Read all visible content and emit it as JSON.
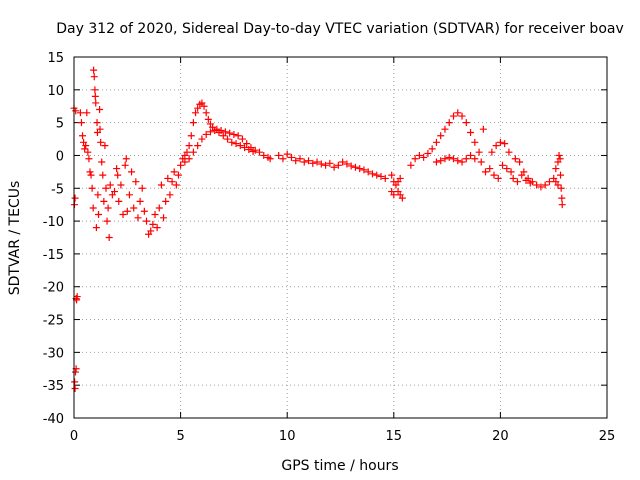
{
  "chart_data": {
    "type": "scatter",
    "title": "Day 312 of 2020, Sidereal Day-to-day VTEC variation (SDTVAR) for receiver boav",
    "xlabel": "GPS time / hours",
    "ylabel": "SDTVAR / TECUs",
    "xlim": [
      0,
      25
    ],
    "ylim": [
      -40,
      15
    ],
    "xticks": [
      "0",
      "5",
      "10",
      "15",
      "20",
      "25"
    ],
    "xtick_values": [
      0,
      5,
      10,
      15,
      20,
      25
    ],
    "yticks": [
      "15",
      "10",
      "5",
      "0",
      "-5",
      "-10",
      "-15",
      "-20",
      "-25",
      "-30",
      "-35",
      "-40"
    ],
    "ytick_values": [
      15,
      10,
      5,
      0,
      -5,
      -10,
      -15,
      -20,
      -25,
      -30,
      -35,
      -40
    ],
    "grid": true,
    "marker": "+",
    "color": "#ff0000",
    "series": [
      {
        "name": "SDTVAR",
        "points": [
          [
            0.0,
            7.2
          ],
          [
            0.02,
            -7.5
          ],
          [
            0.05,
            -6.5
          ],
          [
            0.08,
            6.8
          ],
          [
            0.1,
            -21.8
          ],
          [
            0.12,
            -22.0
          ],
          [
            0.15,
            -21.5
          ],
          [
            0.03,
            -34.5
          ],
          [
            0.05,
            -35.5
          ],
          [
            0.07,
            -33.0
          ],
          [
            0.1,
            -32.5
          ],
          [
            0.3,
            6.5
          ],
          [
            0.35,
            5.0
          ],
          [
            0.4,
            3.0
          ],
          [
            0.45,
            2.0
          ],
          [
            0.5,
            1.0
          ],
          [
            0.55,
            1.5
          ],
          [
            0.6,
            6.5
          ],
          [
            0.65,
            0.5
          ],
          [
            0.7,
            -0.5
          ],
          [
            0.75,
            -2.5
          ],
          [
            0.8,
            -3.0
          ],
          [
            0.85,
            -5.0
          ],
          [
            0.9,
            -8.0
          ],
          [
            0.92,
            13.0
          ],
          [
            0.95,
            12.0
          ],
          [
            0.98,
            10.0
          ],
          [
            1.0,
            9.0
          ],
          [
            1.02,
            8.0
          ],
          [
            1.05,
            -11.0
          ],
          [
            1.08,
            5.0
          ],
          [
            1.1,
            3.5
          ],
          [
            1.12,
            -6.0
          ],
          [
            1.15,
            -9.0
          ],
          [
            1.2,
            7.0
          ],
          [
            1.22,
            4.0
          ],
          [
            1.25,
            2.0
          ],
          [
            1.3,
            -1.0
          ],
          [
            1.35,
            -3.0
          ],
          [
            1.4,
            -7.0
          ],
          [
            1.45,
            1.5
          ],
          [
            1.5,
            -5.0
          ],
          [
            1.55,
            -10.0
          ],
          [
            1.6,
            -8.0
          ],
          [
            1.65,
            -12.5
          ],
          [
            1.7,
            -4.5
          ],
          [
            1.8,
            -6.0
          ],
          [
            1.9,
            -5.5
          ],
          [
            2.0,
            -2.0
          ],
          [
            2.05,
            -3.0
          ],
          [
            2.1,
            -7.0
          ],
          [
            2.2,
            -4.5
          ],
          [
            2.3,
            -9.0
          ],
          [
            2.4,
            -1.5
          ],
          [
            2.45,
            -0.5
          ],
          [
            2.5,
            -8.5
          ],
          [
            2.6,
            -6.0
          ],
          [
            2.7,
            -2.5
          ],
          [
            2.8,
            -8.0
          ],
          [
            2.9,
            -4.0
          ],
          [
            3.0,
            -9.5
          ],
          [
            3.1,
            -7.0
          ],
          [
            3.2,
            -5.0
          ],
          [
            3.3,
            -8.5
          ],
          [
            3.4,
            -10.0
          ],
          [
            3.5,
            -12.0
          ],
          [
            3.6,
            -11.5
          ],
          [
            3.7,
            -10.5
          ],
          [
            3.8,
            -9.0
          ],
          [
            3.9,
            -11.0
          ],
          [
            4.0,
            -8.0
          ],
          [
            4.1,
            -4.5
          ],
          [
            4.2,
            -9.5
          ],
          [
            4.3,
            -7.0
          ],
          [
            4.4,
            -3.5
          ],
          [
            4.5,
            -6.0
          ],
          [
            4.6,
            -4.0
          ],
          [
            4.7,
            -2.5
          ],
          [
            4.8,
            -4.5
          ],
          [
            4.9,
            -3.0
          ],
          [
            5.0,
            -1.5
          ],
          [
            5.1,
            -0.5
          ],
          [
            5.2,
            0.0
          ],
          [
            5.3,
            0.5
          ],
          [
            5.4,
            1.5
          ],
          [
            5.5,
            3.0
          ],
          [
            5.6,
            5.0
          ],
          [
            5.7,
            6.5
          ],
          [
            5.8,
            7.2
          ],
          [
            5.9,
            7.8
          ],
          [
            6.0,
            8.0
          ],
          [
            6.1,
            7.5
          ],
          [
            6.2,
            6.5
          ],
          [
            6.3,
            5.5
          ],
          [
            6.4,
            4.8
          ],
          [
            6.5,
            4.3
          ],
          [
            6.7,
            4.0
          ],
          [
            6.9,
            3.8
          ],
          [
            7.1,
            3.6
          ],
          [
            7.3,
            3.4
          ],
          [
            7.5,
            3.2
          ],
          [
            7.7,
            3.0
          ],
          [
            7.9,
            2.5
          ],
          [
            8.1,
            1.8
          ],
          [
            8.3,
            1.2
          ],
          [
            8.5,
            0.8
          ],
          [
            8.7,
            0.5
          ],
          [
            8.9,
            0.0
          ],
          [
            9.1,
            -0.3
          ],
          [
            9.2,
            -0.5
          ],
          [
            5.2,
            -1.0
          ],
          [
            5.4,
            -0.5
          ],
          [
            5.6,
            0.5
          ],
          [
            5.8,
            1.5
          ],
          [
            6.0,
            2.5
          ],
          [
            6.2,
            3.2
          ],
          [
            6.4,
            3.6
          ],
          [
            6.6,
            3.8
          ],
          [
            6.8,
            3.5
          ],
          [
            7.0,
            3.0
          ],
          [
            7.2,
            2.5
          ],
          [
            7.4,
            2.0
          ],
          [
            7.6,
            1.8
          ],
          [
            7.8,
            1.5
          ],
          [
            8.0,
            1.2
          ],
          [
            8.2,
            0.9
          ],
          [
            8.4,
            0.6
          ],
          [
            9.6,
            0.0
          ],
          [
            9.8,
            -0.5
          ],
          [
            10.0,
            0.2
          ],
          [
            10.2,
            -0.3
          ],
          [
            10.4,
            -0.8
          ],
          [
            10.6,
            -0.5
          ],
          [
            10.8,
            -1.0
          ],
          [
            11.0,
            -0.8
          ],
          [
            11.2,
            -1.2
          ],
          [
            11.4,
            -1.0
          ],
          [
            11.6,
            -1.3
          ],
          [
            11.8,
            -1.5
          ],
          [
            12.0,
            -1.2
          ],
          [
            12.2,
            -1.8
          ],
          [
            12.4,
            -1.5
          ],
          [
            12.6,
            -1.0
          ],
          [
            12.8,
            -1.3
          ],
          [
            13.0,
            -1.6
          ],
          [
            13.2,
            -1.8
          ],
          [
            13.4,
            -2.0
          ],
          [
            13.6,
            -2.2
          ],
          [
            13.8,
            -2.5
          ],
          [
            14.0,
            -2.8
          ],
          [
            14.2,
            -3.0
          ],
          [
            14.4,
            -3.2
          ],
          [
            14.6,
            -3.5
          ],
          [
            14.9,
            -3.0
          ],
          [
            15.0,
            -4.0
          ],
          [
            15.1,
            -4.5
          ],
          [
            15.2,
            -5.5
          ],
          [
            15.3,
            -6.0
          ],
          [
            15.4,
            -6.5
          ],
          [
            15.2,
            -4.0
          ],
          [
            15.0,
            -6.0
          ],
          [
            14.9,
            -5.5
          ],
          [
            15.3,
            -3.5
          ],
          [
            15.8,
            -1.5
          ],
          [
            16.0,
            -0.5
          ],
          [
            16.2,
            0.0
          ],
          [
            16.4,
            -0.3
          ],
          [
            16.6,
            0.3
          ],
          [
            16.8,
            1.0
          ],
          [
            17.0,
            2.0
          ],
          [
            17.2,
            3.0
          ],
          [
            17.4,
            4.0
          ],
          [
            17.6,
            5.0
          ],
          [
            17.8,
            6.0
          ],
          [
            18.0,
            6.5
          ],
          [
            18.2,
            6.0
          ],
          [
            18.4,
            5.0
          ],
          [
            18.6,
            3.5
          ],
          [
            18.8,
            2.0
          ],
          [
            19.0,
            0.5
          ],
          [
            19.1,
            -1.0
          ],
          [
            19.2,
            4.0
          ],
          [
            19.3,
            -2.5
          ],
          [
            17.0,
            -1.0
          ],
          [
            17.2,
            -0.8
          ],
          [
            17.4,
            -0.5
          ],
          [
            17.6,
            -0.3
          ],
          [
            17.8,
            -0.5
          ],
          [
            18.0,
            -0.8
          ],
          [
            18.2,
            -1.0
          ],
          [
            18.4,
            -0.5
          ],
          [
            18.6,
            0.0
          ],
          [
            18.8,
            -0.5
          ],
          [
            19.5,
            -2.0
          ],
          [
            19.7,
            -3.0
          ],
          [
            19.9,
            -3.5
          ],
          [
            20.1,
            -1.5
          ],
          [
            20.3,
            -2.0
          ],
          [
            20.5,
            -2.5
          ],
          [
            20.7,
            -0.5
          ],
          [
            20.9,
            -1.0
          ],
          [
            21.1,
            -2.5
          ],
          [
            21.3,
            -3.5
          ],
          [
            19.6,
            0.5
          ],
          [
            19.8,
            1.5
          ],
          [
            20.0,
            2.0
          ],
          [
            20.2,
            1.8
          ],
          [
            20.4,
            0.5
          ],
          [
            20.6,
            -3.5
          ],
          [
            20.8,
            -4.0
          ],
          [
            21.0,
            -3.0
          ],
          [
            21.2,
            -3.8
          ],
          [
            21.4,
            -4.2
          ],
          [
            21.5,
            -4.0
          ],
          [
            21.7,
            -4.5
          ],
          [
            21.9,
            -4.8
          ],
          [
            22.1,
            -4.5
          ],
          [
            22.3,
            -4.0
          ],
          [
            22.5,
            -3.5
          ],
          [
            22.6,
            -2.0
          ],
          [
            22.7,
            -1.0
          ],
          [
            22.75,
            0.0
          ],
          [
            22.8,
            -0.5
          ],
          [
            22.82,
            -3.0
          ],
          [
            22.85,
            -5.0
          ],
          [
            22.88,
            -6.5
          ],
          [
            22.9,
            -7.5
          ],
          [
            22.7,
            -4.5
          ],
          [
            22.6,
            -4.0
          ]
        ]
      }
    ]
  }
}
